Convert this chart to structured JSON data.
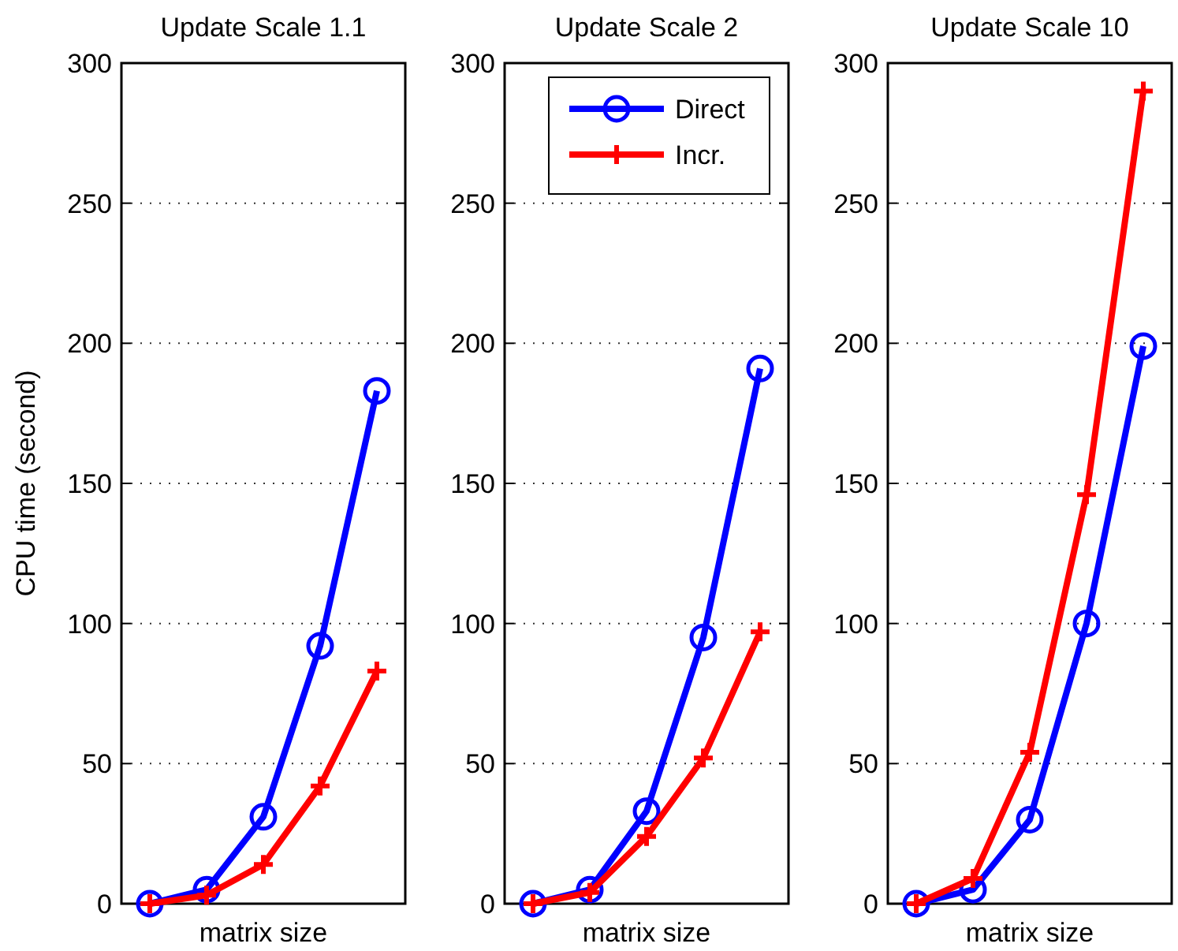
{
  "chart_data": [
    {
      "type": "line",
      "title": "Update Scale 1.1",
      "xlabel": "matrix size",
      "ylabel": "CPU time (second)",
      "categories": [
        null,
        null,
        null,
        null,
        null
      ],
      "ylim": [
        0,
        300
      ],
      "yticks": [
        0,
        50,
        100,
        150,
        200,
        250,
        300
      ],
      "grid": "y",
      "legend": false,
      "tick_labels": "y",
      "line_style": "solid",
      "series": [
        {
          "color": "#0000ff",
          "marker": "circle",
          "values": [
            0,
            5,
            31,
            92,
            183
          ]
        },
        {
          "color": "#ff0000",
          "marker": "cross",
          "values": [
            0,
            3,
            14,
            42,
            83
          ]
        }
      ]
    },
    {
      "type": "line",
      "title": "Update Scale 2",
      "xlabel": "matrix size",
      "categories": [
        null,
        null,
        null,
        null,
        null
      ],
      "ylim": [
        0,
        300
      ],
      "yticks": [
        0,
        50,
        100,
        150,
        200,
        250,
        300
      ],
      "grid": "y",
      "legend": "top right",
      "tick_labels": "y",
      "line_style": "solid",
      "series": [
        {
          "name": "Direct",
          "color": "#0000ff",
          "marker": "circle",
          "values": [
            0,
            5,
            33,
            95,
            191
          ]
        },
        {
          "name": "Incr.",
          "color": "#ff0000",
          "marker": "cross",
          "values": [
            0,
            4,
            24,
            52,
            97
          ]
        }
      ]
    },
    {
      "type": "line",
      "title": "Update Scale 10",
      "xlabel": "matrix size",
      "categories": [
        null,
        null,
        null,
        null,
        null
      ],
      "ylim": [
        0,
        300
      ],
      "yticks": [
        0,
        50,
        100,
        150,
        200,
        250,
        300
      ],
      "grid": "y",
      "legend": false,
      "tick_labels": "y",
      "line_style": "solid",
      "series": [
        {
          "color": "#0000ff",
          "marker": "circle",
          "values": [
            0,
            5,
            30,
            100,
            199
          ]
        },
        {
          "color": "#ff0000",
          "marker": "cross",
          "values": [
            0,
            9,
            54,
            146,
            290
          ]
        }
      ]
    }
  ]
}
